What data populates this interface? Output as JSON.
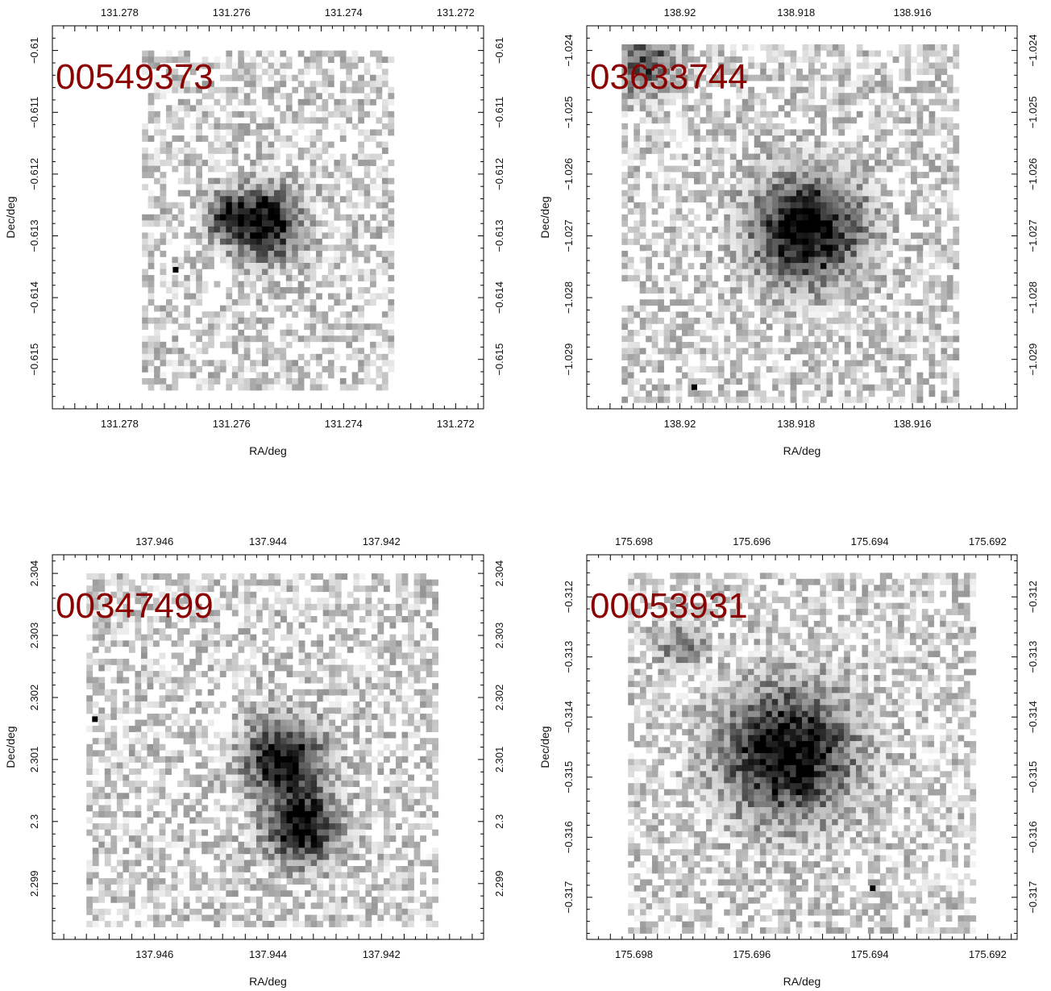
{
  "colors": {
    "label": "#8b0000",
    "pixel": "#000000",
    "frame": "#000000"
  },
  "chart_data": [
    {
      "type": "heatmap",
      "panel_label": "00549373",
      "xlabel": "RA/deg",
      "ylabel": "Dec/deg",
      "xlim": [
        131.2792,
        131.2715
      ],
      "ylim": [
        -0.6158,
        -0.6096
      ],
      "x_ticks": [
        131.278,
        131.276,
        131.274,
        131.272
      ],
      "x_tick_labels": [
        "131.278",
        "131.276",
        "131.274",
        "131.272"
      ],
      "y_ticks": [
        -0.61,
        -0.611,
        -0.612,
        -0.613,
        -0.614,
        -0.615
      ],
      "y_tick_labels": [
        "−0.61",
        "−0.611",
        "−0.612",
        "−0.613",
        "−0.614",
        "−0.615"
      ],
      "show_ylabel": true,
      "image_extent": {
        "ra": [
          131.2776,
          131.2731
        ],
        "dec": [
          -0.6155,
          -0.61
        ]
      },
      "sources": [
        {
          "ra": 131.2754,
          "dec": -0.6128,
          "size": 0.0004,
          "peak": 0.95
        },
        {
          "ra": 131.2761,
          "dec": -0.6127,
          "size": 0.00025,
          "peak": 0.55
        }
      ],
      "hot_pixels": [
        {
          "ra": 131.277,
          "dec": -0.61355
        }
      ]
    },
    {
      "type": "heatmap",
      "panel_label": "03633744",
      "xlabel": "RA/deg",
      "ylabel": "Dec/deg",
      "xlim": [
        138.9216,
        138.9142
      ],
      "ylim": [
        -1.0298,
        -1.0236
      ],
      "x_ticks": [
        138.92,
        138.918,
        138.916
      ],
      "x_tick_labels": [
        "138.92",
        "138.918",
        "138.916"
      ],
      "y_ticks": [
        -1.024,
        -1.025,
        -1.026,
        -1.027,
        -1.028,
        -1.029
      ],
      "y_tick_labels": [
        "−1.024",
        "−1.025",
        "−1.026",
        "−1.027",
        "−1.028",
        "−1.029"
      ],
      "show_ylabel": true,
      "image_extent": {
        "ra": [
          138.921,
          138.9152
        ],
        "dec": [
          -1.0297,
          -1.0239
        ]
      },
      "sources": [
        {
          "ra": 138.9178,
          "dec": -1.0269,
          "size": 0.0006,
          "peak": 0.95
        },
        {
          "ra": 138.9206,
          "dec": -1.0242,
          "size": 0.00035,
          "peak": 0.55
        }
      ],
      "hot_pixels": [
        {
          "ra": 138.91975,
          "dec": -1.02945
        }
      ]
    },
    {
      "type": "heatmap",
      "panel_label": "00347499",
      "xlabel": "RA/deg",
      "ylabel": "Dec/deg",
      "xlim": [
        137.9478,
        137.9402
      ],
      "ylim": [
        2.2981,
        2.3043
      ],
      "x_ticks": [
        137.946,
        137.944,
        137.942
      ],
      "x_tick_labels": [
        "137.946",
        "137.944",
        "137.942"
      ],
      "y_ticks": [
        2.304,
        2.303,
        2.302,
        2.301,
        2.3,
        2.299
      ],
      "y_tick_labels": [
        "2.304",
        "2.303",
        "2.302",
        "2.301",
        "2.3",
        "2.299"
      ],
      "show_ylabel": true,
      "image_extent": {
        "ra": [
          137.9472,
          137.941
        ],
        "dec": [
          2.2983,
          2.304
        ]
      },
      "sources": [
        {
          "ra": 137.9437,
          "dec": 2.301,
          "size": 0.00045,
          "peak": 0.9
        },
        {
          "ra": 137.9434,
          "dec": 2.2999,
          "size": 0.0004,
          "peak": 0.95
        }
      ],
      "hot_pixels": [
        {
          "ra": 137.94705,
          "dec": 2.30165
        }
      ]
    },
    {
      "type": "heatmap",
      "panel_label": "00053931",
      "xlabel": "RA/deg",
      "ylabel": "Dec/deg",
      "xlim": [
        175.6988,
        175.6915
      ],
      "ylim": [
        -0.3177,
        -0.3113
      ],
      "x_ticks": [
        175.698,
        175.696,
        175.694,
        175.692
      ],
      "x_tick_labels": [
        "175.698",
        "175.696",
        "175.694",
        "175.692"
      ],
      "y_ticks": [
        -0.312,
        -0.313,
        -0.314,
        -0.315,
        -0.316,
        -0.317
      ],
      "y_tick_labels": [
        "−0.312",
        "−0.313",
        "−0.314",
        "−0.315",
        "−0.316",
        "−0.317"
      ],
      "show_ylabel": true,
      "image_extent": {
        "ra": [
          175.6981,
          175.6922
        ],
        "dec": [
          -0.3176,
          -0.3116
        ]
      },
      "sources": [
        {
          "ra": 175.6954,
          "dec": -0.3146,
          "size": 0.0007,
          "peak": 0.95
        },
        {
          "ra": 175.6972,
          "dec": -0.3128,
          "size": 0.00025,
          "peak": 0.35
        }
      ],
      "hot_pixels": [
        {
          "ra": 175.69395,
          "dec": -0.31685
        }
      ]
    }
  ]
}
